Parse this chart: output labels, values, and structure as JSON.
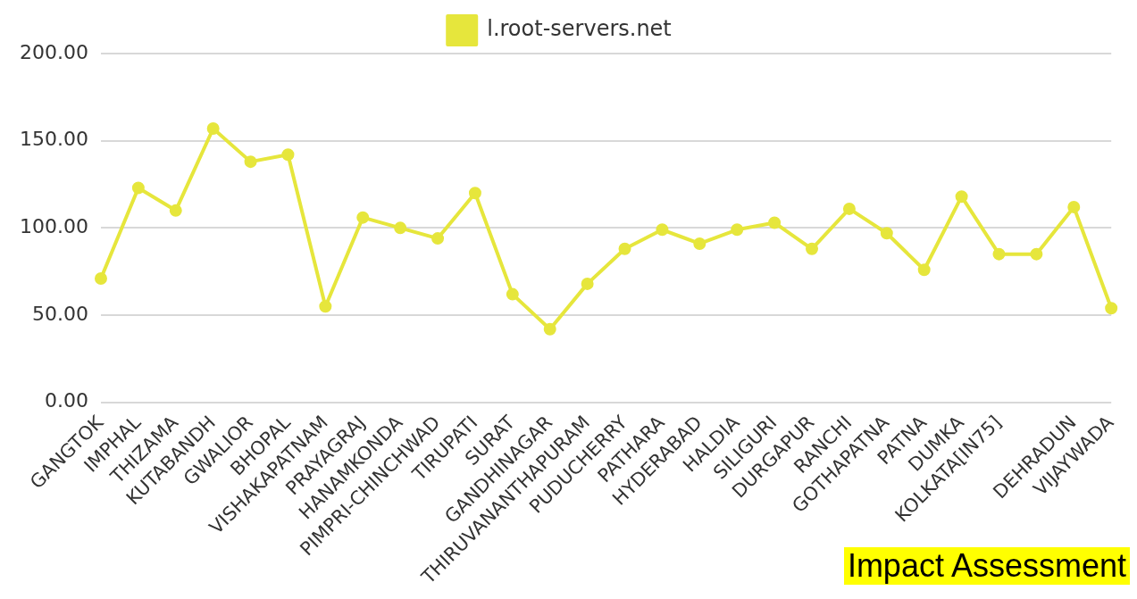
{
  "chart_data": {
    "type": "line",
    "categories": [
      "GANGTOK",
      "IMPHAL",
      "THIZAMA",
      "KUTABANDH",
      "GWALIOR",
      "BHOPAL",
      "VISHAKAPATNAM",
      "PRAYAGRAJ",
      "HANAMKONDA",
      "PIMPRI-CHINCHWAD",
      "TIRUPATI",
      "SURAT",
      "GANDHINAGAR",
      "THIRUVANANTHAPURAM",
      "PUDUCHERRY",
      "PATHARA",
      "HYDERABAD",
      "HALDIA",
      "SILIGURI",
      "DURGAPUR",
      "RANCHI",
      "GOTHAPATNA",
      "PATNA",
      "DUMKA",
      "KOLKATA[IN75]",
      null,
      "DEHRADUN",
      "VIJAYWADA"
    ],
    "series": [
      {
        "name": "l.root-servers.net",
        "color": "#e6e63c",
        "values": [
          71,
          123,
          110,
          157,
          138,
          142,
          55,
          106,
          100,
          94,
          120,
          62,
          42,
          68,
          88,
          99,
          91,
          99,
          103,
          88,
          111,
          97,
          76,
          118,
          85,
          85,
          112,
          54
        ]
      }
    ],
    "ylim": [
      0,
      200
    ],
    "yticks": [
      {
        "value": 0,
        "label": "0.00"
      },
      {
        "value": 50,
        "label": "50.00"
      },
      {
        "value": 100,
        "label": "100.00"
      },
      {
        "value": 150,
        "label": "150.00"
      },
      {
        "value": 200,
        "label": "200.00"
      }
    ],
    "grid": "y",
    "legend": "top",
    "marker": "circle",
    "line_style": "solid",
    "annotations": [
      "Impact Assessment"
    ]
  }
}
